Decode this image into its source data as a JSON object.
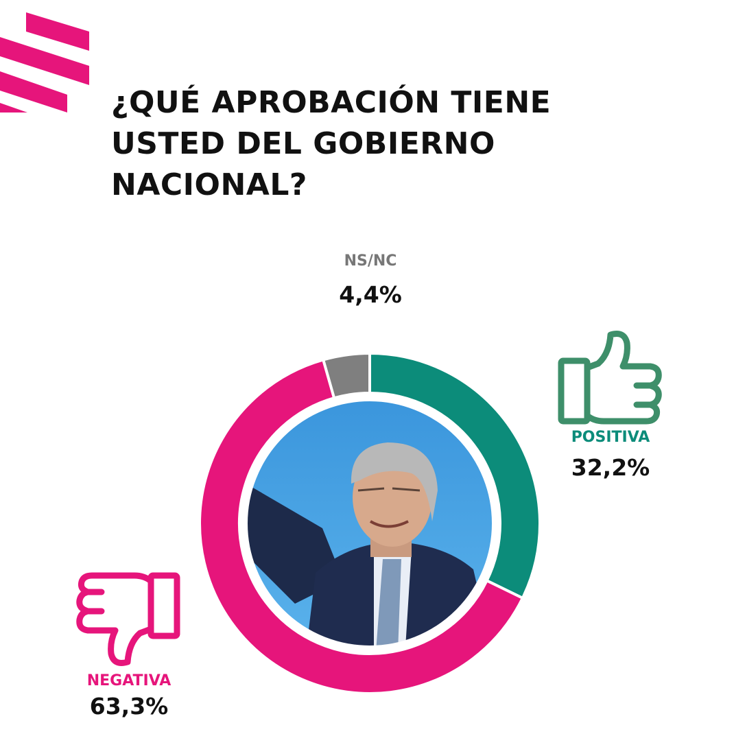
{
  "header": {
    "title": "¿QUÉ APROBACIÓN TIENE\nUSTED DEL GOBIERNO\nNACIONAL?"
  },
  "colors": {
    "accent": "#e6157b",
    "positive": "#0c8c7a",
    "positive_icon": "#3e8f6a",
    "nsnc": "#7f7f7f",
    "photo_sky": "#3d9be0",
    "text": "#111111"
  },
  "icons": {
    "logo": "brand-stripes-logo",
    "positive": "thumbs-up-icon",
    "negative": "thumbs-down-icon"
  },
  "chart_data": {
    "type": "pie",
    "variant": "donut",
    "title": "¿QUÉ APROBACIÓN TIENE USTED DEL GOBIERNO NACIONAL?",
    "categories": [
      "POSITIVA",
      "NEGATIVA",
      "NS/NC"
    ],
    "values": [
      32.2,
      63.3,
      4.4
    ],
    "labels": [
      "32,2%",
      "63,3%",
      "4,4%"
    ],
    "colors": [
      "#0c8c7a",
      "#e6157b",
      "#7f7f7f"
    ],
    "center_image": "president-photo"
  }
}
